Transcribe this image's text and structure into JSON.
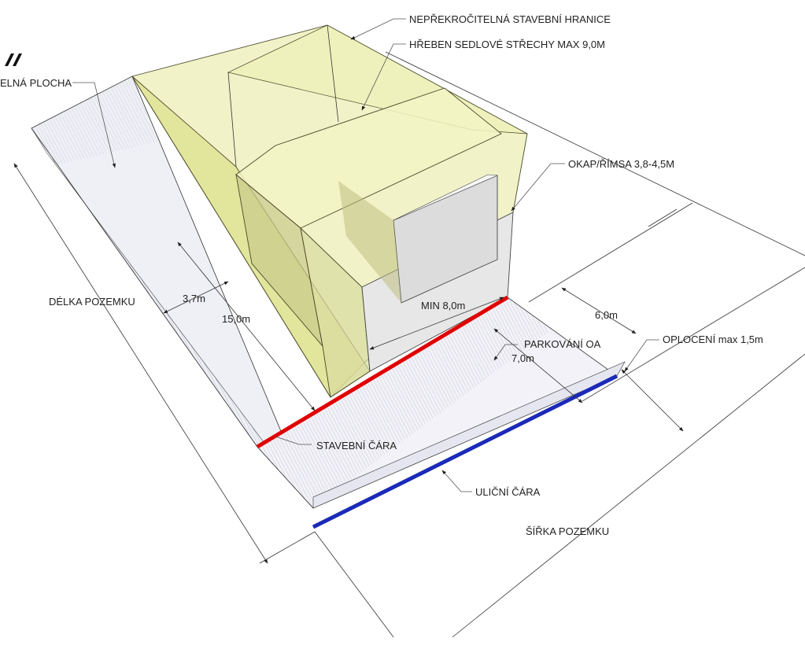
{
  "labels": {
    "buildable_area": "ELNÁ PLOCHA",
    "hard_boundary": "NEPŘEKROČITELNÁ STAVEBNÍ HRANICE",
    "ridge": "HŘEBEN SEDLOVÉ STŘECHY MAX 9,0M",
    "eaves": "OKAP/ŘÍMSA 3,8-4,5M",
    "plot_length": "DÉLKA POZEMKU",
    "dim_3_7": "3,7m",
    "dim_15": "15,0m",
    "min_8": "MIN 8,0m",
    "dim_6": "6,0m",
    "parking": "PARKOVÁNÍ OA",
    "dim_7": "7,0m",
    "fence": "OPLOCENÍ max 1,5m",
    "building_line": "STAVEBNÍ ČÁRA",
    "street_line": "ULIČNÍ ČÁRA",
    "plot_width": "ŠÍŘKA POZEMKU"
  },
  "colors": {
    "envelope_fill": "#e6e89a",
    "envelope_stroke": "#4a4a2a",
    "plot_fill": "#efeff6",
    "building_fill": "#e7e7e7",
    "building_line": "#e00000",
    "street_line": "#1a2ab8"
  }
}
